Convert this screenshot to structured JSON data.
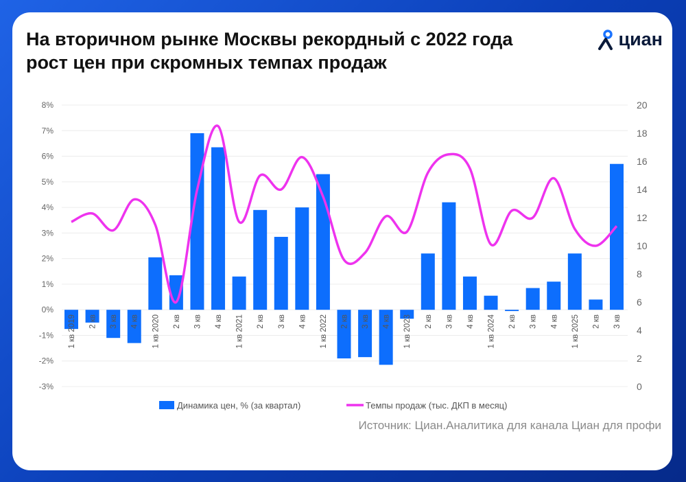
{
  "title": "На вторичном рынке Москвы рекордный с 2022 года рост цен при скромных темпах продаж",
  "logo": {
    "text": "циан",
    "icon": "location-pin-icon"
  },
  "source": "Источник: Циан.Аналитика для канала Циан для профи",
  "chart_data": {
    "type": "bar+line",
    "categories": [
      "1 кв 2019",
      "2 кв",
      "3 кв",
      "4 кв",
      "1 кв 2020",
      "2 кв",
      "3 кв",
      "4 кв",
      "1 кв 2021",
      "2 кв",
      "3 кв",
      "4 кв",
      "1 кв 2022",
      "2 кв",
      "3 кв",
      "4 кв",
      "1 кв 2023",
      "2 кв",
      "3 кв",
      "4 кв",
      "1 кв 2024",
      "2 кв",
      "3 кв",
      "4 кв",
      "1 кв 2025",
      "2 кв",
      "3 кв"
    ],
    "series": [
      {
        "name": "Динамика цен,  % (за квартал)",
        "type": "bar",
        "axis": "left",
        "color": "#0d6efd",
        "values": [
          -0.75,
          -0.5,
          -1.1,
          -1.3,
          2.05,
          1.35,
          6.9,
          6.35,
          1.3,
          3.9,
          2.85,
          4.0,
          5.3,
          -1.9,
          -1.85,
          -2.15,
          -0.35,
          2.2,
          4.2,
          1.3,
          0.55,
          -0.05,
          0.85,
          1.1,
          2.2,
          0.4,
          5.7
        ]
      },
      {
        "name": "Темпы продаж (тыс. ДКП в месяц)",
        "type": "line",
        "axis": "right",
        "color": "#ee33ee",
        "values": [
          11.7,
          12.3,
          11.1,
          13.3,
          11.5,
          6.0,
          14.0,
          18.5,
          11.7,
          15.0,
          14.0,
          16.3,
          13.5,
          9.0,
          9.5,
          12.1,
          11.0,
          15.2,
          16.5,
          15.5,
          10.1,
          12.5,
          12.0,
          14.8,
          11.2,
          10.0,
          11.4
        ]
      }
    ],
    "left_axis": {
      "ylim": [
        -3,
        8
      ],
      "ticks": [
        "-3%",
        "-2%",
        "-1%",
        "0%",
        "1%",
        "2%",
        "3%",
        "4%",
        "5%",
        "6%",
        "7%",
        "8%"
      ]
    },
    "right_axis": {
      "ylim": [
        0,
        20
      ],
      "ticks": [
        "0",
        "2",
        "4",
        "6",
        "8",
        "10",
        "12",
        "14",
        "16",
        "18",
        "20"
      ]
    },
    "legend": "bottom",
    "grid": true
  }
}
